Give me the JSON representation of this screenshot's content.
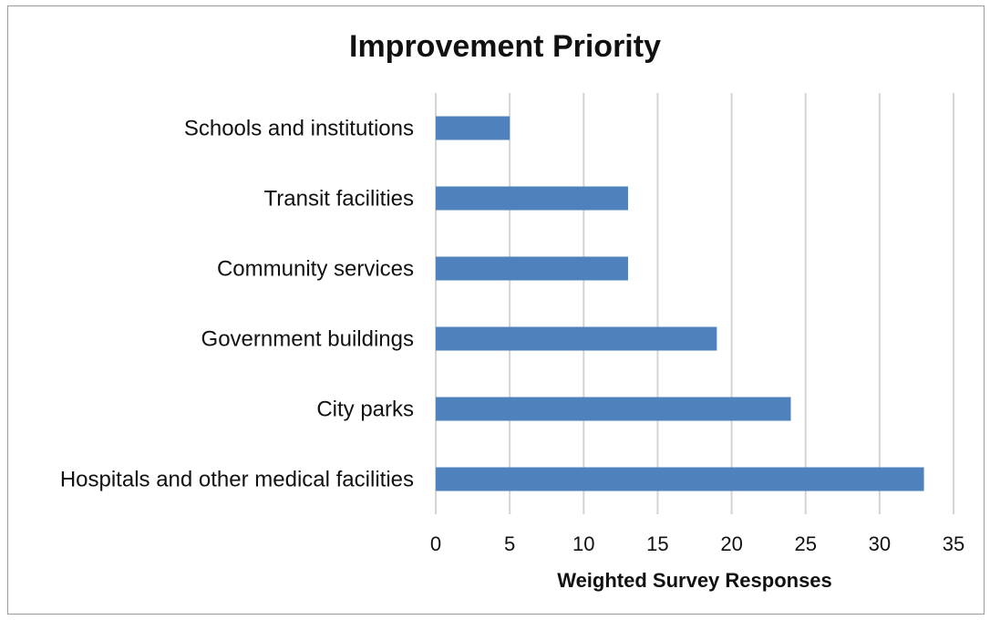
{
  "chart_data": {
    "type": "bar",
    "orientation": "horizontal",
    "title": "Improvement Priority",
    "xlabel": "Weighted Survey Responses",
    "ylabel": "",
    "categories": [
      "Schools and institutions",
      "Transit facilities",
      "Community services",
      "Government buildings",
      "City parks",
      "Hospitals and other medical facilities"
    ],
    "values": [
      5,
      13,
      13,
      19,
      24,
      33
    ],
    "xlim": [
      0,
      35
    ],
    "ticks": [
      "0",
      "5",
      "10",
      "15",
      "20",
      "25",
      "30",
      "35"
    ],
    "tick_values": [
      0,
      5,
      10,
      15,
      20,
      25,
      30,
      35
    ],
    "grid": "vertical",
    "legend": "none",
    "bar_color": "#4f81bd"
  }
}
